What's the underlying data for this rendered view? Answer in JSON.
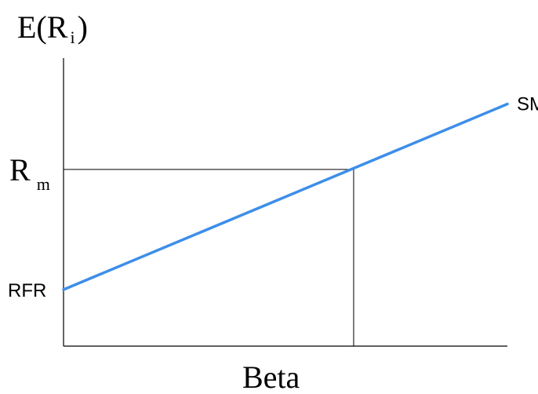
{
  "chart_data": {
    "type": "line",
    "ylabel": {
      "base": "E(R",
      "subscript": "i",
      "close": ")"
    },
    "xlabel": "Beta",
    "grid": false,
    "xlim": [
      0,
      1.53
    ],
    "ylim": [
      0,
      1.63
    ],
    "series": [
      {
        "name": "SML",
        "color": "#3d8ee8",
        "x": [
          0,
          1.53
        ],
        "y": [
          0.32,
          1.37
        ]
      }
    ],
    "market_point": {
      "x": 1.0,
      "y": 1.0
    },
    "annotations": {
      "rm": {
        "base": "R",
        "subscript": "m",
        "y": 1.0
      },
      "rfr": {
        "text": "RFR",
        "y": 0.32
      }
    }
  }
}
